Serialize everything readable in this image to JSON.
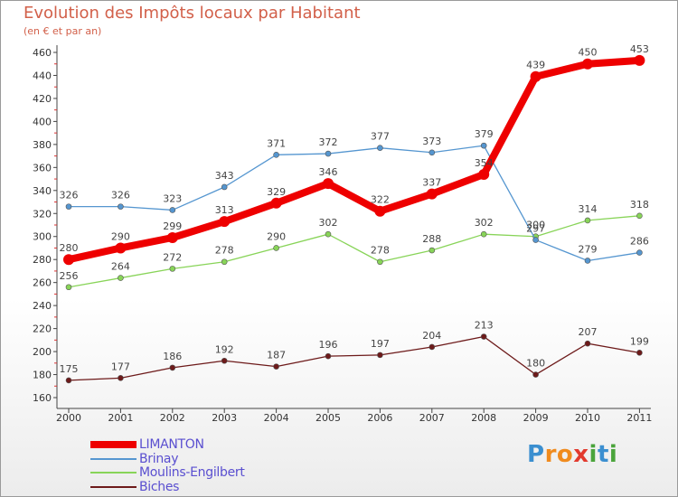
{
  "title": "Evolution des Impôts locaux par Habitant",
  "subtitle": "(en € et par an)",
  "logo": {
    "letters": [
      {
        "ch": "P",
        "color": "#3b8fd0"
      },
      {
        "ch": "r",
        "color": "#f08b1e"
      },
      {
        "ch": "o",
        "color": "#f08b1e"
      },
      {
        "ch": "x",
        "color": "#e23a2e"
      },
      {
        "ch": "i",
        "color": "#4aa43b"
      },
      {
        "ch": "t",
        "color": "#3b8fd0"
      },
      {
        "ch": "i",
        "color": "#4aa43b"
      }
    ]
  },
  "chart_data": {
    "type": "line",
    "title": "Evolution des Impôts locaux par Habitant",
    "subtitle": "(en € et par an)",
    "xlabel": "",
    "ylabel": "",
    "ylim": [
      160,
      460
    ],
    "ytick_step": 20,
    "grid": false,
    "legend_position": "bottom-left",
    "categories": [
      "2000",
      "2001",
      "2002",
      "2003",
      "2004",
      "2005",
      "2006",
      "2007",
      "2008",
      "2009",
      "2010",
      "2011"
    ],
    "yticks": [
      "160",
      "180",
      "200",
      "220",
      "240",
      "260",
      "280",
      "300",
      "320",
      "340",
      "360",
      "380",
      "400",
      "420",
      "440",
      "460"
    ],
    "series": [
      {
        "name": "LIMANTON",
        "color": "#ee0000",
        "width": 8,
        "marker": 6,
        "values": [
          280,
          290,
          299,
          313,
          329,
          346,
          322,
          337,
          354,
          439,
          450,
          453
        ],
        "labels": [
          "280",
          "290",
          "299",
          "313",
          "329",
          "346",
          "322",
          "337",
          "354",
          "439",
          "450",
          "453"
        ]
      },
      {
        "name": "Brinay",
        "color": "#5596d0",
        "width": 1.3,
        "marker": 3,
        "values": [
          326,
          326,
          323,
          343,
          371,
          372,
          377,
          373,
          379,
          297,
          279,
          286
        ],
        "labels": [
          "326",
          "326",
          "323",
          "343",
          "371",
          "372",
          "377",
          "373",
          "379",
          "297",
          "279",
          "286"
        ]
      },
      {
        "name": "Moulins-Engilbert",
        "color": "#88d458",
        "width": 1.3,
        "marker": 3,
        "values": [
          256,
          264,
          272,
          278,
          290,
          302,
          278,
          288,
          302,
          300,
          314,
          318
        ],
        "labels": [
          "256",
          "264",
          "272",
          "278",
          "290",
          "302",
          "278",
          "288",
          "302",
          "300",
          "314",
          "318"
        ]
      },
      {
        "name": "Biches",
        "color": "#6d1a1a",
        "width": 1.3,
        "marker": 3,
        "values": [
          175,
          177,
          186,
          192,
          187,
          196,
          197,
          204,
          213,
          180,
          207,
          199
        ],
        "labels": [
          "175",
          "177",
          "186",
          "192",
          "187",
          "196",
          "197",
          "204",
          "213",
          "180",
          "207",
          "199"
        ]
      }
    ]
  }
}
